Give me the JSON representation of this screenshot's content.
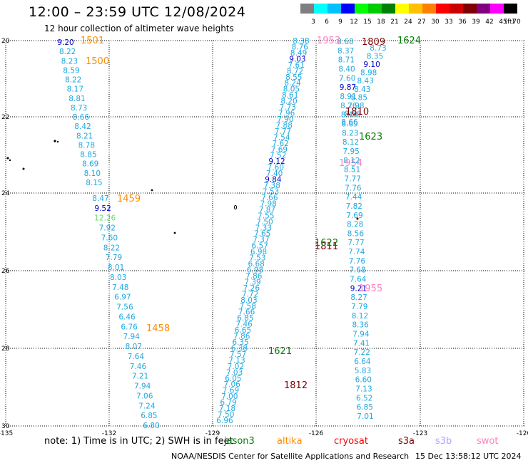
{
  "header": {
    "title": "12:00 – 23:59 UTC 12/08/2024",
    "subtitle": "12 hour collection of altimeter wave heights"
  },
  "color_scale": {
    "unit": "(ft)",
    "ticks": [
      "3",
      "6",
      "9",
      "12",
      "15",
      "18",
      "21",
      "24",
      "27",
      "30",
      "33",
      "36",
      "39",
      "42",
      "45",
      "70"
    ],
    "colors": [
      "#7f7f7f",
      "#00ffff",
      "#00bfff",
      "#0000ff",
      "#00ff00",
      "#00cc00",
      "#008000",
      "#ffff00",
      "#ffc000",
      "#ff8000",
      "#ff0000",
      "#cc0000",
      "#800000",
      "#800080",
      "#ff00ff",
      "#000000"
    ]
  },
  "axes": {
    "lon_ticks": [
      "-135",
      "-132",
      "-129",
      "-126",
      "-123",
      "-120"
    ],
    "lat_ticks": [
      "20",
      "22",
      "24",
      "26",
      "28",
      "30"
    ]
  },
  "tracks": [
    {
      "id": "t1",
      "values": [
        "9.20",
        "8.22",
        "8.23",
        "8.59",
        "8.22",
        "8.17",
        "8.81",
        "8.73",
        "8.66",
        "8.42",
        "8.21",
        "8.78",
        "8.85",
        "8.69",
        "8.10",
        "8.15"
      ]
    },
    {
      "id": "t2",
      "values": [
        "8.47",
        "9.52",
        "12.26",
        "7.92",
        "7.60",
        "8.22",
        "7.79",
        "8.01",
        "8.03",
        "7.48",
        "6.97",
        "7.56",
        "6.46",
        "6.76",
        "7.94",
        "8.07",
        "7.64",
        "7.46",
        "7.21",
        "7.94",
        "7.06",
        "7.24",
        "6.85",
        "6.80"
      ]
    },
    {
      "id": "t3",
      "values": [
        "8.38",
        "8.76",
        "8.49",
        "9.03",
        "7.61",
        "8.72",
        "8.55",
        "8.24",
        "8.05",
        "8.61",
        "8.20",
        "7.73",
        "7.96",
        "7.90",
        "7.88",
        "7.77",
        "7.54",
        "7.62",
        "7.69",
        "7.52",
        "9.12",
        "7.60",
        "7.40",
        "9.84",
        "7.38",
        "7.53",
        "7.66",
        "7.98",
        "7.87",
        "7.55",
        "7.50",
        "7.33",
        "7.65",
        "7.37",
        "6.57",
        "6.98",
        "7.53",
        "6.68",
        "6.98",
        "7.86",
        "7.39",
        "7.26",
        "7.72",
        "8.03",
        "7.58",
        "7.66",
        "6.85",
        "7.46",
        "6.65",
        "7.86",
        "6.35",
        "6.38",
        "7.57",
        "7.13",
        "7.02",
        "7.03",
        "6.05",
        "7.06",
        "7.69",
        "7.00",
        "6.79",
        "7.18",
        "7.50",
        "6.96"
      ]
    },
    {
      "id": "t4",
      "values": [
        "8.68",
        "8.37",
        "8.71",
        "8.40",
        "7.60",
        "9.87",
        "8.91",
        "8.26",
        "8.44",
        "8.69",
        "8.23",
        "8.12",
        "7.95",
        "8.12",
        "8.51",
        "7.77",
        "7.76",
        "7.44",
        "7.82",
        "7.69",
        "8.28",
        "8.56",
        "7.77",
        "7.74",
        "7.76",
        "7.68",
        "7.64",
        "9.21",
        "8.27",
        "7.79",
        "8.12",
        "8.36",
        "7.94",
        "7.41",
        "7.22",
        "6.64",
        "5.83",
        "6.60",
        "7.13",
        "6.52",
        "6.85",
        "7.01"
      ]
    },
    {
      "id": "t5",
      "values": [
        "8.73",
        "8.35",
        "9.10",
        "8.98",
        "8.43",
        "8.43",
        "8.85",
        "7.98",
        "8.56",
        "8.66"
      ]
    }
  ],
  "time_labels": [
    {
      "text": "1501",
      "color": "#ff8c00"
    },
    {
      "text": "1500",
      "color": "#ff8c00"
    },
    {
      "text": "1459",
      "color": "#ff8c00"
    },
    {
      "text": "1458",
      "color": "#ff8c00"
    },
    {
      "text": "1953",
      "color": "#ff80c0"
    },
    {
      "text": "1954",
      "color": "#ff80c0"
    },
    {
      "text": "1955",
      "color": "#ff80c0"
    },
    {
      "text": "1809",
      "color": "#800000"
    },
    {
      "text": "1810",
      "color": "#800000"
    },
    {
      "text": "1811",
      "color": "#800000"
    },
    {
      "text": "1812",
      "color": "#800000"
    },
    {
      "text": "1624",
      "color": "#008000"
    },
    {
      "text": "1623",
      "color": "#008000"
    },
    {
      "text": "1622",
      "color": "#008000"
    },
    {
      "text": "1621",
      "color": "#008000"
    }
  ],
  "footer": {
    "note": "note:  1) Time is in UTC; 2) SWH is in feet",
    "satellites": [
      {
        "name": "jason3",
        "color": "#008000"
      },
      {
        "name": "altika",
        "color": "#ff8c00"
      },
      {
        "name": "cryosat",
        "color": "#ff0000"
      },
      {
        "name": "s3a",
        "color": "#800000"
      },
      {
        "name": "s3b",
        "color": "#b0a0ff"
      },
      {
        "name": "swot",
        "color": "#ff80c0"
      }
    ],
    "credit": "NOAA/NESDIS Center for Satellite Applications and Research",
    "generated": "15 Dec 13:58:12 UTC 2024"
  }
}
